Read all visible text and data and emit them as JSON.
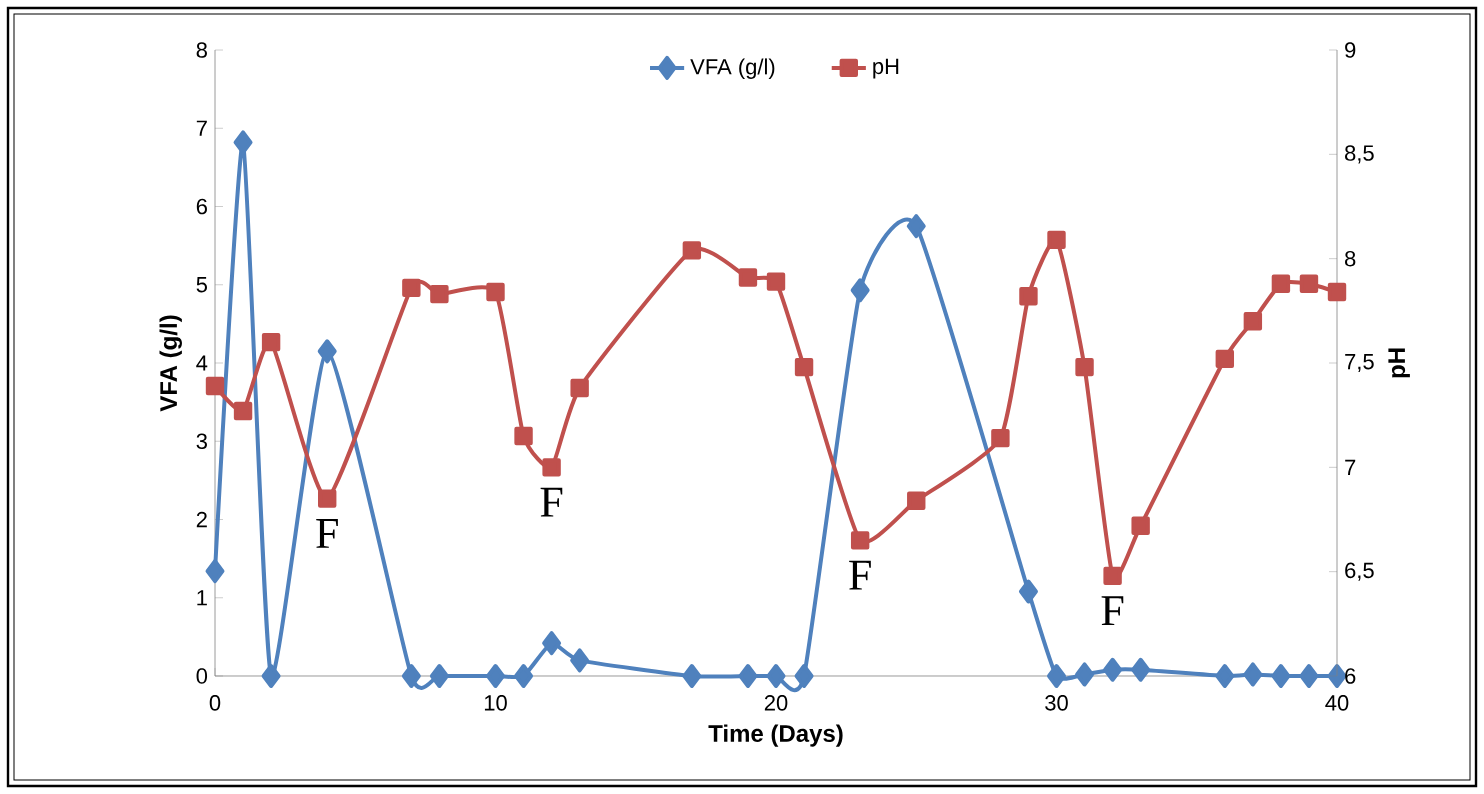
{
  "chart_data": {
    "type": "line",
    "xlabel": "Time (Days)",
    "ylabel": "VFA (g/l)",
    "y2label": "pH",
    "xlim": [
      0,
      40
    ],
    "xticks": [
      0,
      10,
      20,
      30,
      40
    ],
    "ylim": [
      0,
      8
    ],
    "yticks": [
      0,
      1,
      2,
      3,
      4,
      5,
      6,
      7,
      8
    ],
    "y2lim": [
      6,
      9
    ],
    "y2ticks": [
      6,
      {
        "value": 6.5,
        "label": "6,5"
      },
      7,
      {
        "value": 7.5,
        "label": "7,5"
      },
      8,
      {
        "value": 8.5,
        "label": "8,5"
      },
      9
    ],
    "grid": false,
    "legend": "top",
    "line_style": "solid",
    "series": [
      {
        "name": "VFA (g/l)",
        "color": "#4f81bd",
        "marker": "diamond",
        "x": [
          0,
          1,
          2,
          4,
          7,
          8,
          10,
          11,
          12,
          13,
          17,
          19,
          20,
          21,
          23,
          25,
          29,
          30,
          31,
          32,
          33,
          36,
          37,
          38,
          39,
          40
        ],
        "values": [
          1.34,
          6.82,
          0,
          4.15,
          0,
          0,
          0,
          0,
          0.42,
          0.2,
          0,
          0,
          0,
          0,
          4.93,
          5.75,
          1.08,
          0,
          0.02,
          0.08,
          0.08,
          0,
          0.02,
          0,
          0,
          0
        ]
      },
      {
        "name": "pH",
        "color": "#c0504d",
        "marker": "square",
        "axis": "y2",
        "x": [
          0,
          1,
          2,
          4,
          7,
          8,
          10,
          11,
          12,
          13,
          17,
          19,
          20,
          21,
          23,
          25,
          28,
          29,
          30,
          31,
          32,
          33,
          36,
          37,
          38,
          39,
          40
        ],
        "values": [
          7.39,
          7.27,
          7.6,
          6.85,
          7.86,
          7.83,
          7.84,
          7.15,
          7.0,
          7.38,
          8.04,
          7.91,
          7.89,
          7.48,
          6.65,
          6.84,
          7.14,
          7.82,
          8.09,
          7.48,
          6.48,
          6.72,
          7.52,
          7.7,
          7.88,
          7.88,
          7.84
        ]
      }
    ],
    "annotations": [
      "F",
      "F",
      "F",
      "F"
    ]
  }
}
